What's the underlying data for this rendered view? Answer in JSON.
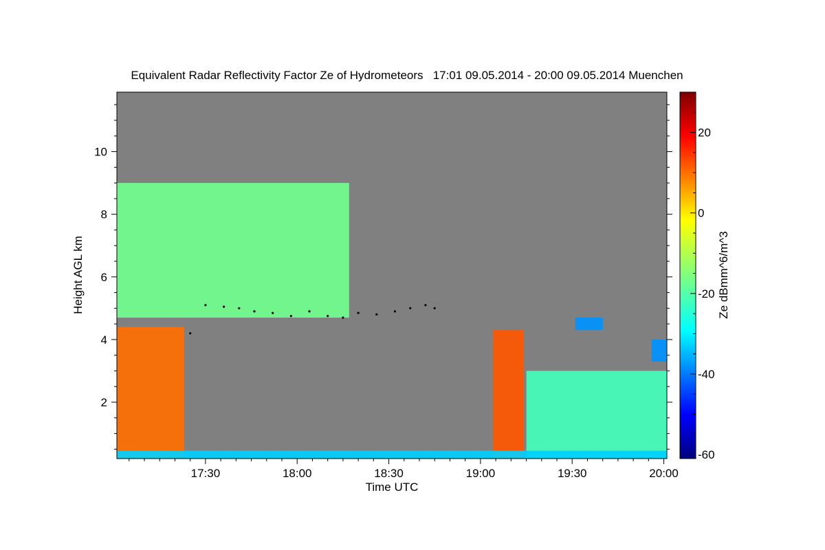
{
  "chart_data": {
    "type": "heatmap",
    "title": "Equivalent Radar Reflectivity Factor Ze of Hydrometeors   17:01 09.05.2014 - 20:00 09.05.2014 Muenchen",
    "xlabel": "Time UTC",
    "ylabel": "Height AGL km",
    "xlim_minutes_utc": [
      1021,
      1201
    ],
    "ylim_km": [
      0.2,
      11.9
    ],
    "x_ticks": [
      {
        "label": "17:30",
        "value_minutes_utc": 1050
      },
      {
        "label": "18:00",
        "value_minutes_utc": 1080
      },
      {
        "label": "18:30",
        "value_minutes_utc": 1110
      },
      {
        "label": "19:00",
        "value_minutes_utc": 1140
      },
      {
        "label": "19:30",
        "value_minutes_utc": 1170
      },
      {
        "label": "20:00",
        "value_minutes_utc": 1200
      }
    ],
    "y_ticks": [
      {
        "label": "2",
        "value": 2
      },
      {
        "label": "4",
        "value": 4
      },
      {
        "label": "6",
        "value": 6
      },
      {
        "label": "8",
        "value": 8
      },
      {
        "label": "10",
        "value": 10
      }
    ],
    "colorbar": {
      "label": "Ze dBmm^6/m^3",
      "range": [
        -61,
        30
      ],
      "ticks": [
        {
          "label": "20",
          "value": 20
        },
        {
          "label": "0",
          "value": 0
        },
        {
          "label": "-20",
          "value": -20
        },
        {
          "label": "-40",
          "value": -40
        },
        {
          "label": "-60",
          "value": -60
        }
      ],
      "colormap": "jet"
    },
    "no_signal_color": "#808080",
    "echo_regions": [
      {
        "name": "upper cloud deck",
        "t_start": 1021,
        "t_end": 1097,
        "h_base_km": 4.7,
        "h_top_km": 9.0,
        "ze_dbz": -17
      },
      {
        "name": "early precipitation",
        "t_start": 1021,
        "t_end": 1043,
        "h_base_km": 0.2,
        "h_top_km": 4.4,
        "ze_dbz": 10
      },
      {
        "name": "convective cell 19:05",
        "t_start": 1144,
        "t_end": 1154,
        "h_base_km": 0.2,
        "h_top_km": 4.3,
        "ze_dbz": 12
      },
      {
        "name": "low convection",
        "t_start": 1155,
        "t_end": 1201,
        "h_base_km": 0.2,
        "h_top_km": 3.0,
        "ze_dbz": -22
      },
      {
        "name": "isolated echo 19:32",
        "t_start": 1171,
        "t_end": 1180,
        "h_base_km": 4.3,
        "h_top_km": 4.7,
        "ze_dbz": -38
      },
      {
        "name": "isolated echo 19:55",
        "t_start": 1196,
        "t_end": 1201,
        "h_base_km": 3.3,
        "h_top_km": 4.0,
        "ze_dbz": -38
      },
      {
        "name": "near-surface clutter",
        "t_start": 1021,
        "t_end": 1201,
        "h_base_km": 0.2,
        "h_top_km": 0.45,
        "ze_dbz": -33
      }
    ],
    "cloud_base_series": {
      "t": [
        1045,
        1050,
        1056,
        1061,
        1066,
        1072,
        1078,
        1084,
        1090,
        1095,
        1100,
        1106,
        1112,
        1117,
        1122,
        1125
      ],
      "h_km": [
        4.2,
        5.1,
        5.05,
        5.0,
        4.9,
        4.85,
        4.75,
        4.9,
        4.75,
        4.7,
        4.85,
        4.8,
        4.9,
        5.0,
        5.1,
        5.0
      ]
    }
  }
}
